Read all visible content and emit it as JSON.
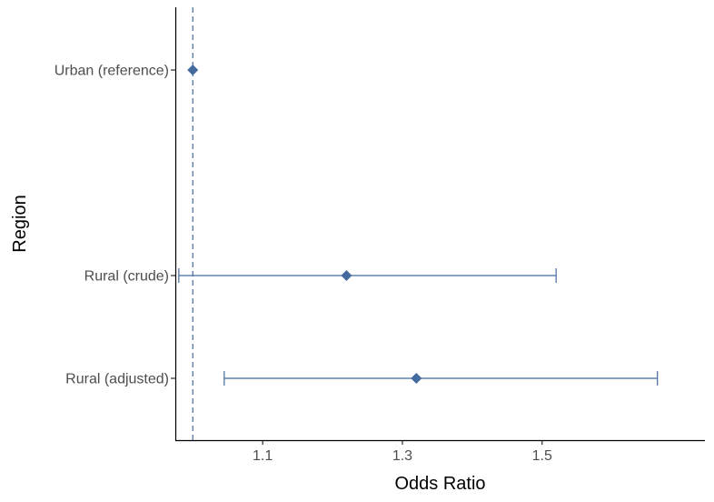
{
  "chart_data": {
    "type": "forest",
    "title": "",
    "xlabel": "Odds Ratio",
    "ylabel": "Region",
    "xlim": [
      0.975,
      1.733
    ],
    "x_ticks": [
      {
        "value": 1.1,
        "label": "1.1"
      },
      {
        "value": 1.3,
        "label": "1.3"
      },
      {
        "value": 1.5,
        "label": "1.5"
      }
    ],
    "reference_line": 1.0,
    "categories": [
      "Urban (reference)",
      "Rural (crude)",
      "Rural (adjusted)"
    ],
    "points": [
      {
        "label": "Urban (reference)",
        "or": 1.0,
        "lower": null,
        "upper": null
      },
      {
        "label": "Rural (crude)",
        "or": 1.22,
        "lower": 0.98,
        "upper": 1.52
      },
      {
        "label": "Rural (adjusted)",
        "or": 1.32,
        "lower": 1.045,
        "upper": 1.665
      }
    ],
    "grid": false,
    "color": "#446a9e"
  }
}
